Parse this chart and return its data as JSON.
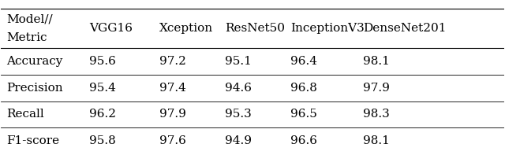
{
  "col_labels": [
    "Model//\nMetric",
    "VGG16",
    "Xception",
    "ResNet50",
    "InceptionV3",
    "DenseNet201"
  ],
  "rows": [
    [
      "Accuracy",
      "95.6",
      "97.2",
      "95.1",
      "96.4",
      "98.1"
    ],
    [
      "Precision",
      "95.4",
      "97.4",
      "94.6",
      "96.8",
      "97.9"
    ],
    [
      "Recall",
      "96.2",
      "97.9",
      "95.3",
      "96.5",
      "98.3"
    ],
    [
      "F1-score",
      "95.8",
      "97.6",
      "94.9",
      "96.6",
      "98.1"
    ]
  ],
  "background_color": "#ffffff",
  "text_color": "#000000",
  "line_color": "#000000",
  "font_size": 11,
  "header_font_size": 11
}
